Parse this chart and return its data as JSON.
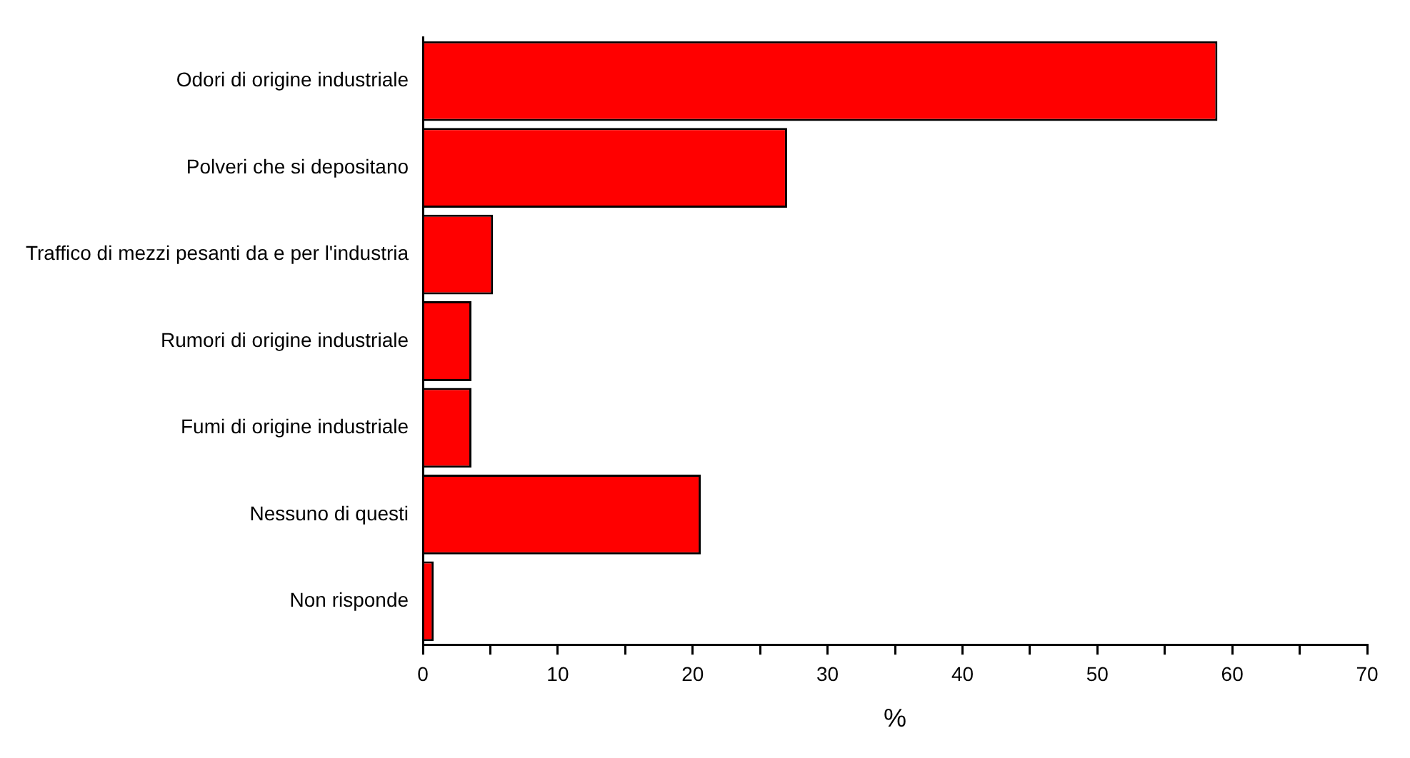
{
  "chart_data": {
    "type": "bar",
    "orientation": "horizontal",
    "xlabel": "%",
    "categories": [
      "Odori di origine industriale",
      "Polveri che si depositano",
      "Traffico di mezzi pesanti da e per l'industria",
      "Rumori di origine industriale",
      "Fumi di origine industriale",
      "Nessuno di questi",
      "Non risponde"
    ],
    "values": [
      58.9,
      27.0,
      5.2,
      3.6,
      3.6,
      20.6,
      0.8
    ],
    "color": "#ff0000",
    "xlim": [
      0,
      70
    ],
    "xticks": [
      0,
      {
        "value": 5,
        "label": null
      },
      10,
      {
        "value": 15,
        "label": null
      },
      20,
      {
        "value": 25,
        "label": null
      },
      30,
      {
        "value": 35,
        "label": null
      },
      40,
      {
        "value": 45,
        "label": null
      },
      50,
      {
        "value": 55,
        "label": null
      },
      60,
      {
        "value": 65,
        "label": null
      },
      70
    ],
    "grid": false,
    "legend": false
  }
}
